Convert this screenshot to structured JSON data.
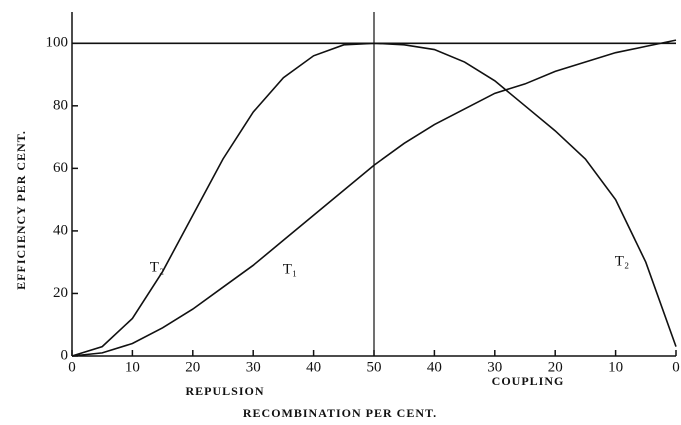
{
  "chart_data": {
    "type": "line",
    "ylabel": "EFFICIENCY PER CENT.",
    "xlabel": "RECOMBINATION PER CENT.",
    "region_labels": [
      "REPULSION",
      "COUPLING"
    ],
    "x": [
      0,
      5,
      10,
      15,
      20,
      25,
      30,
      35,
      40,
      45,
      50,
      55,
      60,
      65,
      70,
      75,
      80,
      85,
      90,
      95,
      100
    ],
    "series": [
      {
        "name": "T₂",
        "color": "#111111",
        "values": [
          0,
          3,
          12,
          27,
          45,
          63,
          78,
          89,
          96,
          99.5,
          100,
          99.5,
          98,
          94,
          88,
          80,
          72,
          63,
          50,
          30,
          3
        ]
      },
      {
        "name": "T₁",
        "color": "#111111",
        "values": [
          0,
          1,
          4,
          9,
          15,
          22,
          29,
          37,
          45,
          53,
          61,
          68,
          74,
          79,
          84,
          87,
          91,
          94,
          97,
          99,
          101
        ]
      }
    ],
    "hline": 100,
    "vline": 50,
    "xlim": [
      0,
      100
    ],
    "ylim": [
      0,
      110
    ],
    "xticks": [
      0,
      10,
      20,
      30,
      40,
      50,
      {
        "value": 60,
        "label": "40"
      },
      {
        "value": 70,
        "label": "30"
      },
      {
        "value": 80,
        "label": "20"
      },
      {
        "value": 90,
        "label": "10"
      },
      {
        "value": 100,
        "label": "0"
      }
    ],
    "yticks": [
      0,
      20,
      40,
      60,
      80,
      100
    ],
    "grid": false
  }
}
